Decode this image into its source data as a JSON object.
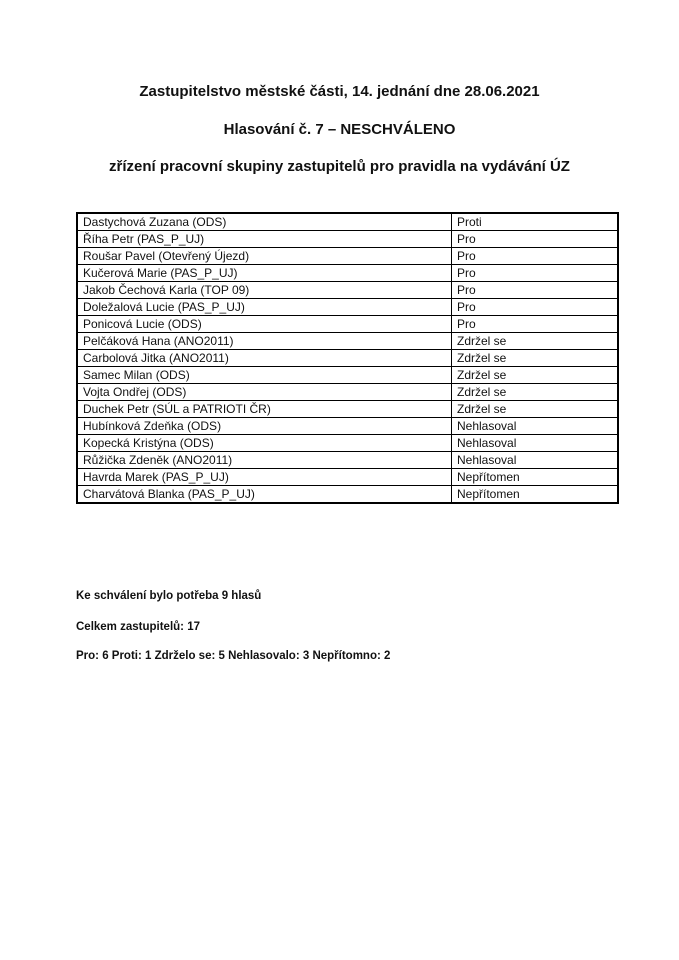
{
  "header": {
    "title": "Zastupitelstvo městské části, 14. jednání dne 28.06.2021",
    "subtitle": "Hlasování č. 7 – NESCHVÁLENO",
    "topic": "zřízení pracovní skupiny zastupitelů pro pravidla na vydávání ÚZ"
  },
  "votes": {
    "rows": [
      {
        "name": "Dastychová Zuzana (ODS)",
        "vote": "Proti"
      },
      {
        "name": "Říha Petr (PAS_P_UJ)",
        "vote": "Pro"
      },
      {
        "name": "Roušar Pavel (Otevřený Újezd)",
        "vote": "Pro"
      },
      {
        "name": "Kučerová Marie (PAS_P_UJ)",
        "vote": "Pro"
      },
      {
        "name": "Jakob Čechová Karla (TOP 09)",
        "vote": "Pro"
      },
      {
        "name": "Doležalová Lucie (PAS_P_UJ)",
        "vote": "Pro"
      },
      {
        "name": "Ponicová Lucie (ODS)",
        "vote": "Pro"
      },
      {
        "name": "Pelčáková Hana (ANO2011)",
        "vote": "Zdržel se"
      },
      {
        "name": "Carbolová Jitka (ANO2011)",
        "vote": "Zdržel se"
      },
      {
        "name": "Samec Milan (ODS)",
        "vote": "Zdržel se"
      },
      {
        "name": "Vojta Ondřej (ODS)",
        "vote": "Zdržel se"
      },
      {
        "name": "Duchek Petr (SÚL a PATRIOTI ČR)",
        "vote": "Zdržel se"
      },
      {
        "name": "Hubínková Zdeňka (ODS)",
        "vote": "Nehlasoval"
      },
      {
        "name": "Kopecká Kristýna (ODS)",
        "vote": "Nehlasoval"
      },
      {
        "name": "Růžička Zdeněk (ANO2011)",
        "vote": "Nehlasoval"
      },
      {
        "name": "Havrda Marek (PAS_P_UJ)",
        "vote": "Nepřítomen"
      },
      {
        "name": "Charvátová Blanka (PAS_P_UJ)",
        "vote": "Nepřítomen"
      }
    ]
  },
  "summary": {
    "required_votes": "Ke schválení bylo potřeba 9 hlasů",
    "total_members": "Celkem zastupitelů: 17",
    "result_counts": "Pro: 6 Proti: 1 Zdrželo se: 5 Nehlasovalo: 3 Nepřítomno: 2"
  }
}
